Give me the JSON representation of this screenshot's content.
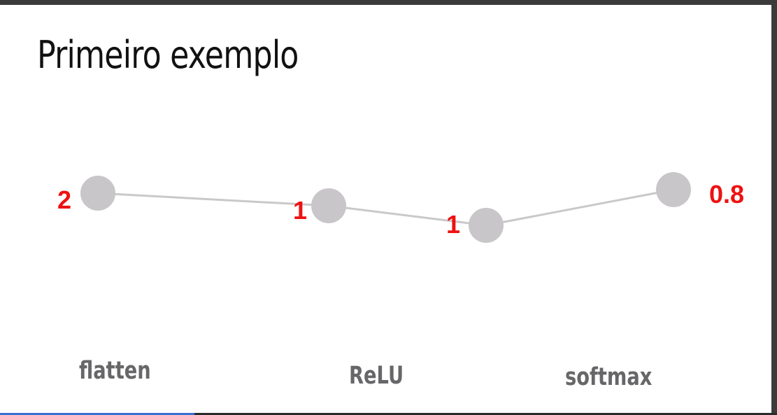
{
  "slide": {
    "title": "Primeiro exemplo"
  },
  "diagram": {
    "nodes": [
      {
        "value": "2"
      },
      {
        "value": "1"
      },
      {
        "value": "1"
      },
      {
        "value": "0.8"
      }
    ],
    "layer_labels": [
      "flatten",
      "ReLU",
      "softmax"
    ]
  },
  "colors": {
    "node": "#c8c6c9",
    "edge": "#c9c9c9",
    "value_text": "#ee1111",
    "label_text": "#676769"
  }
}
